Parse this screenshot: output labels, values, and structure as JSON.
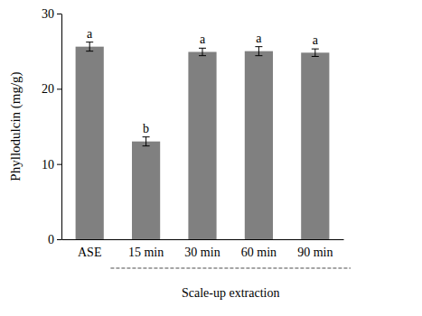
{
  "chart_data": {
    "type": "bar",
    "y_label": "Phyllodulcin (mg/g)",
    "categories": [
      "ASE",
      "15 min",
      "30 min",
      "60 min",
      "90 min"
    ],
    "values": [
      25.6,
      13.0,
      24.9,
      25.0,
      24.8
    ],
    "errors": [
      0.6,
      0.6,
      0.5,
      0.6,
      0.5
    ],
    "group_labels": [
      "a",
      "b",
      "a",
      "a",
      "a"
    ],
    "category_group": {
      "label": "Scale-up extraction",
      "start": 1,
      "end": 4
    },
    "color": "#808080",
    "ylim": [
      0,
      30
    ],
    "yticks": [
      0,
      10,
      20,
      30
    ],
    "grid": false
  }
}
